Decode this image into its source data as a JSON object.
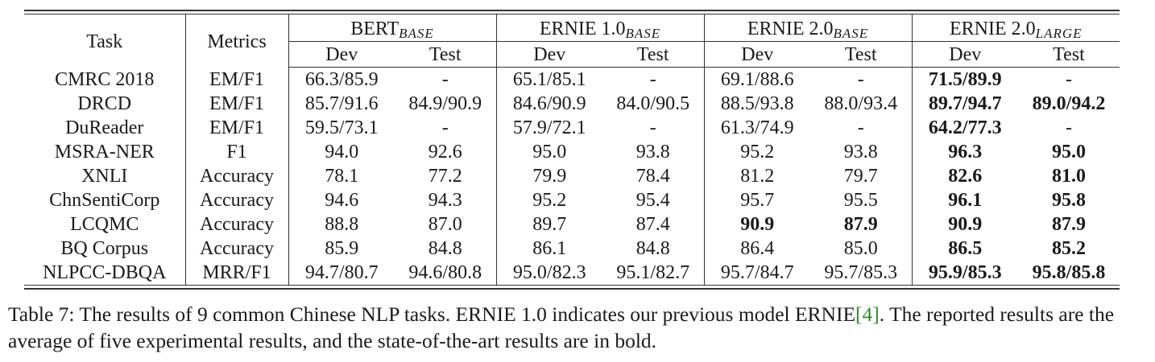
{
  "table": {
    "headers": {
      "task": "Task",
      "metrics": "Metrics",
      "groups": [
        {
          "label": "BERT",
          "sub": "BASE"
        },
        {
          "label": "ERNIE 1.0",
          "sub": "BASE"
        },
        {
          "label": "ERNIE 2.0",
          "sub": "BASE"
        },
        {
          "label": "ERNIE 2.0",
          "sub": "LARGE"
        }
      ],
      "dev": "Dev",
      "test": "Test"
    },
    "rows": [
      {
        "task": "CMRC 2018",
        "metric": "EM/F1",
        "values": [
          "66.3/85.9",
          "-",
          "65.1/85.1",
          "-",
          "69.1/88.6",
          "-",
          "71.5/89.9",
          "-"
        ]
      },
      {
        "task": "DRCD",
        "metric": "EM/F1",
        "values": [
          "85.7/91.6",
          "84.9/90.9",
          "84.6/90.9",
          "84.0/90.5",
          "88.5/93.8",
          "88.0/93.4",
          "89.7/94.7",
          "89.0/94.2"
        ]
      },
      {
        "task": "DuReader",
        "metric": "EM/F1",
        "values": [
          "59.5/73.1",
          "-",
          "57.9/72.1",
          "-",
          "61.3/74.9",
          "-",
          "64.2/77.3",
          "-"
        ]
      },
      {
        "task": "MSRA-NER",
        "metric": "F1",
        "values": [
          "94.0",
          "92.6",
          "95.0",
          "93.8",
          "95.2",
          "93.8",
          "96.3",
          "95.0"
        ]
      },
      {
        "task": "XNLI",
        "metric": "Accuracy",
        "values": [
          "78.1",
          "77.2",
          "79.9",
          "78.4",
          "81.2",
          "79.7",
          "82.6",
          "81.0"
        ]
      },
      {
        "task": "ChnSentiCorp",
        "metric": "Accuracy",
        "values": [
          "94.6",
          "94.3",
          "95.2",
          "95.4",
          "95.7",
          "95.5",
          "96.1",
          "95.8"
        ]
      },
      {
        "task": "LCQMC",
        "metric": "Accuracy",
        "values": [
          "88.8",
          "87.0",
          "89.7",
          "87.4",
          "90.9",
          "87.9",
          "90.9",
          "87.9"
        ]
      },
      {
        "task": "BQ Corpus",
        "metric": "Accuracy",
        "values": [
          "85.9",
          "84.8",
          "86.1",
          "84.8",
          "86.4",
          "85.0",
          "86.5",
          "85.2"
        ]
      },
      {
        "task": "NLPCC-DBQA",
        "metric": "MRR/F1",
        "values": [
          "94.7/80.7",
          "94.6/80.8",
          "95.0/82.3",
          "95.1/82.7",
          "95.7/84.7",
          "95.7/85.3",
          "95.9/85.3",
          "95.8/85.8"
        ]
      }
    ],
    "bold_cells": [
      [
        0,
        6
      ],
      [
        1,
        6
      ],
      [
        1,
        7
      ],
      [
        2,
        6
      ],
      [
        3,
        6
      ],
      [
        3,
        7
      ],
      [
        4,
        6
      ],
      [
        4,
        7
      ],
      [
        5,
        6
      ],
      [
        5,
        7
      ],
      [
        6,
        4
      ],
      [
        6,
        5
      ],
      [
        6,
        6
      ],
      [
        6,
        7
      ],
      [
        7,
        6
      ],
      [
        7,
        7
      ],
      [
        8,
        6
      ],
      [
        8,
        7
      ]
    ]
  },
  "caption": {
    "part1": "Table 7: The results of 9 common Chinese NLP tasks. ERNIE 1.0 indicates our previous model ERNIE",
    "cite": "[4]",
    "part2": ". The reported results are the average of five experimental results, and the state-of-the-art results are in bold."
  }
}
